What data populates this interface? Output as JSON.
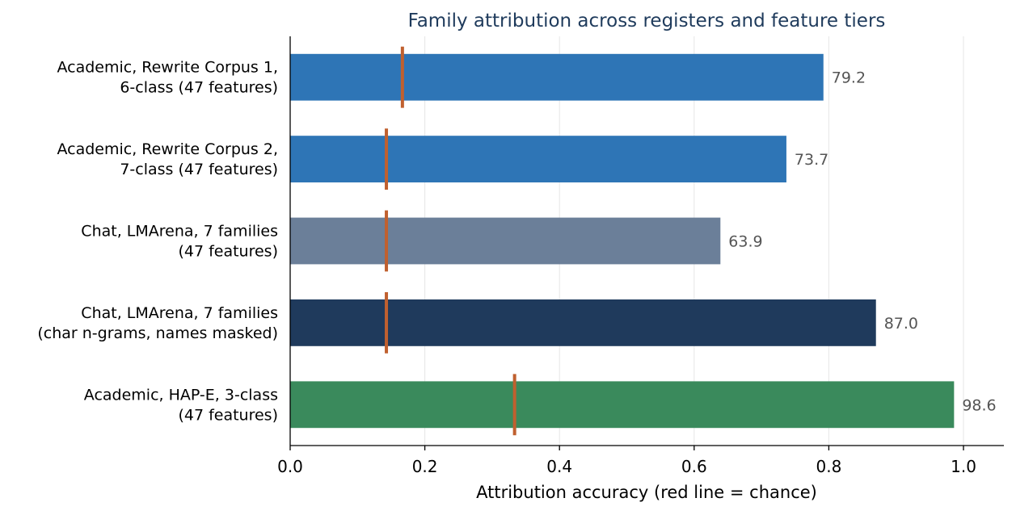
{
  "chart_data": {
    "type": "bar",
    "orientation": "horizontal",
    "title": "Family attribution across registers and feature tiers",
    "xlabel": "Attribution accuracy (red line = chance)",
    "ylabel": "",
    "xlim": [
      0,
      1.06
    ],
    "xticks": [
      0.0,
      0.2,
      0.4,
      0.6,
      0.8,
      1.0
    ],
    "xtick_labels": [
      "0.0",
      "0.2",
      "0.4",
      "0.6",
      "0.8",
      "1.0"
    ],
    "grid": "vertical",
    "categories": [
      [
        "Academic, Rewrite Corpus 1,",
        "6-class (47 features)"
      ],
      [
        "Academic, Rewrite Corpus 2,",
        "7-class (47 features)"
      ],
      [
        "Chat, LMArena, 7 families",
        "(47 features)"
      ],
      [
        "Chat, LMArena, 7 families",
        "(char n-grams, names masked)"
      ],
      [
        "Academic, HAP-E, 3-class",
        "(47 features)"
      ]
    ],
    "values": [
      0.792,
      0.737,
      0.639,
      0.87,
      0.986
    ],
    "value_labels": [
      "79.2",
      "73.7",
      "63.9",
      "87.0",
      "98.6"
    ],
    "chance": [
      0.1667,
      0.1429,
      0.1429,
      0.1429,
      0.3333
    ],
    "bar_colors": [
      "#2e75b6",
      "#2e75b6",
      "#6b7f99",
      "#1f3a5c",
      "#3a8a5c"
    ],
    "chance_color": "#c0602f"
  }
}
